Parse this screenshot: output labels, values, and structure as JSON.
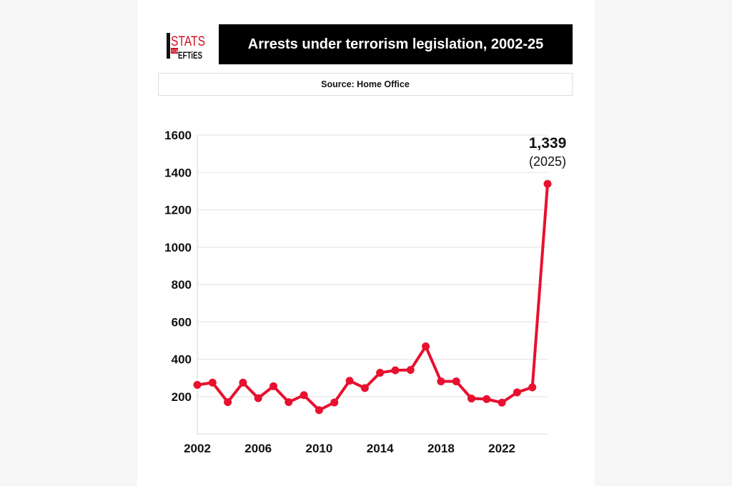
{
  "logo": {
    "text_top": "STATS",
    "text_small": "FOR",
    "text_bottom": "LEFTIES"
  },
  "header": {
    "title": "Arrests under terrorism legislation, 2002-25",
    "source": "Source: Home Office"
  },
  "colors": {
    "line": "#e8102e",
    "title_bg": "#000000"
  },
  "chart_data": {
    "type": "line",
    "title": "Arrests under terrorism legislation, 2002-25",
    "x": [
      2002,
      2003,
      2004,
      2005,
      2006,
      2007,
      2008,
      2009,
      2010,
      2011,
      2012,
      2013,
      2014,
      2015,
      2016,
      2017,
      2018,
      2019,
      2020,
      2021,
      2022,
      2023,
      2024,
      2025
    ],
    "values": [
      263,
      275,
      171,
      275,
      192,
      256,
      171,
      208,
      128,
      169,
      285,
      246,
      328,
      341,
      343,
      469,
      282,
      282,
      190,
      187,
      168,
      223,
      250,
      1339
    ],
    "xlim": [
      2002,
      2025
    ],
    "ylim": [
      0,
      1600
    ],
    "x_ticks": [
      "2002",
      "2006",
      "2010",
      "2014",
      "2018",
      "2022"
    ],
    "y_ticks": [
      "200",
      "400",
      "600",
      "800",
      "1000",
      "1200",
      "1400",
      "1600"
    ],
    "grid": true,
    "annotation": {
      "value": "1,339",
      "label": "(2025)"
    }
  }
}
